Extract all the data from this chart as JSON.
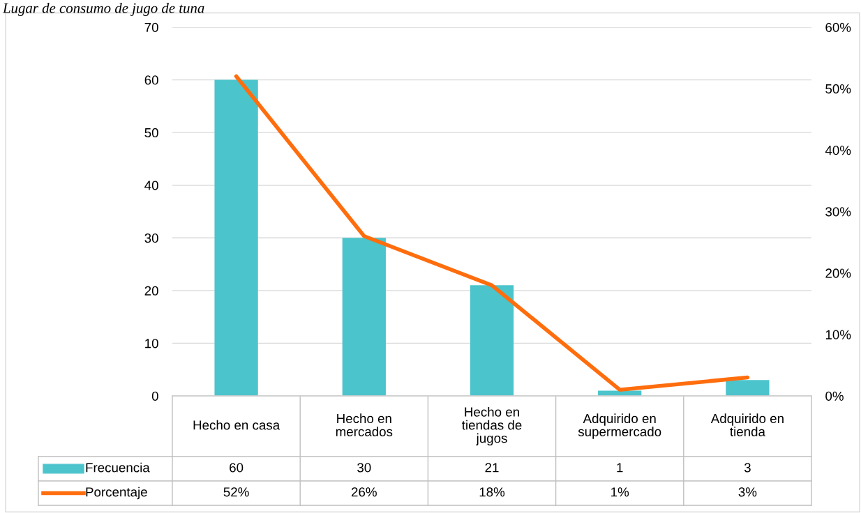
{
  "chart_data": {
    "type": "bar",
    "title": "Lugar de consumo de jugo de tuna",
    "categories": [
      "Hecho en casa",
      "Hecho en\nmercados",
      "Hecho en\ntiendas de\njugos",
      "Adquirido en\nsupermercado",
      "Adquirido en\ntienda"
    ],
    "series": [
      {
        "name": "Frecuencia",
        "color": "#4bc4cc",
        "values": [
          60,
          30,
          21,
          1,
          3
        ],
        "value_labels": [
          "60",
          "30",
          "21",
          "1",
          "3"
        ]
      },
      {
        "name": "Porcentaje",
        "type": "line",
        "axis": "y2",
        "color": "#ff6d0d",
        "values": [
          52,
          26,
          18,
          1,
          3
        ],
        "value_labels": [
          "52%",
          "26%",
          "18%",
          "1%",
          "3%"
        ]
      }
    ],
    "ylim": [
      0,
      70
    ],
    "yticks": [
      0,
      10,
      20,
      30,
      40,
      50,
      60,
      70
    ],
    "y2lim": [
      0,
      60
    ],
    "y2ticks": [
      {
        "value": 0,
        "label": "0%"
      },
      {
        "value": 10,
        "label": "10%"
      },
      {
        "value": 20,
        "label": "20%"
      },
      {
        "value": 30,
        "label": "30%"
      },
      {
        "value": 40,
        "label": "40%"
      },
      {
        "value": 50,
        "label": "50%"
      },
      {
        "value": 60,
        "label": "60%"
      }
    ],
    "grid": "y",
    "legend": "bottom",
    "marker": "none",
    "line_style": "solid"
  }
}
